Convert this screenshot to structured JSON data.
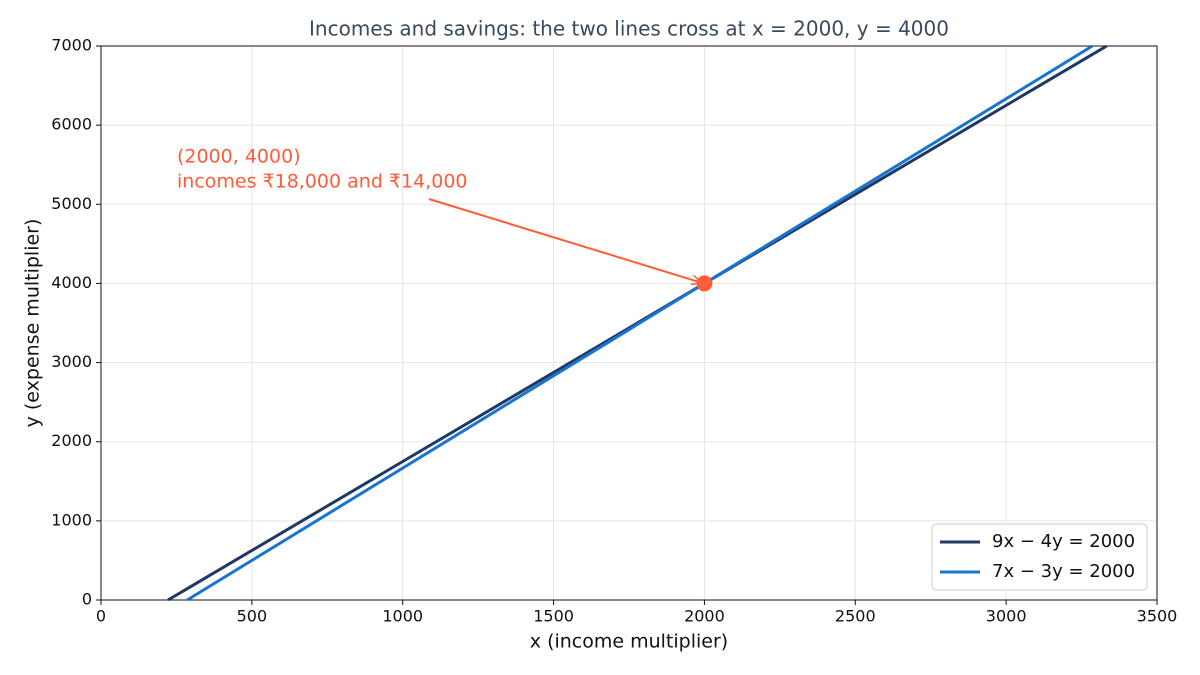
{
  "chart_data": {
    "type": "line",
    "title": "Incomes and savings: the two lines cross at x = 2000, y = 4000",
    "x_label": "x (income multiplier)",
    "y_label": "y (expense multiplier)",
    "x": [
      222.2,
      285.7,
      2000,
      3285.7,
      3333.3
    ],
    "series": [
      {
        "name": "9x − 4y = 2000",
        "color": "#1f3864",
        "values": [
          0,
          142.9,
          4000,
          6892.9,
          7000
        ]
      },
      {
        "name": "7x − 3y = 2000",
        "color": "#1874cd",
        "values": [
          null,
          0,
          4000,
          7000,
          null
        ]
      }
    ],
    "xlim": [
      0,
      3500
    ],
    "ylim": [
      0,
      7000
    ],
    "xticks": [
      0,
      500,
      1000,
      1500,
      2000,
      2500,
      3000,
      3500
    ],
    "yticks": [
      0,
      1000,
      2000,
      3000,
      4000,
      5000,
      6000,
      7000
    ],
    "grid": true,
    "legend": "lower right",
    "annotation": {
      "lines": [
        "(2000, 4000)",
        "incomes ₹18,000 and ₹14,000"
      ],
      "x": 2000,
      "y": 4000,
      "color": "#ff5c39"
    }
  }
}
